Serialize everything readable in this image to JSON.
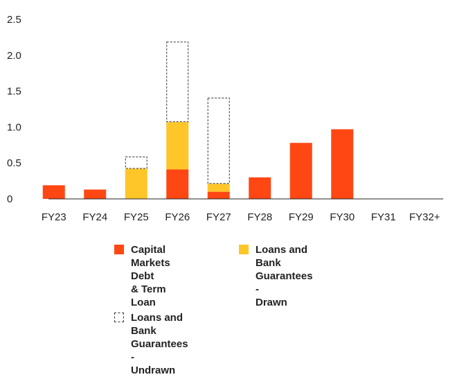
{
  "chart_data": {
    "type": "bar",
    "stacked": true,
    "title": "",
    "xlabel": "",
    "ylabel": "",
    "ylim": [
      0,
      2.5
    ],
    "yticks": [
      "0",
      "0.5",
      "1.0",
      "1.5",
      "2.0",
      "2.5"
    ],
    "categories": [
      "FY23",
      "FY24",
      "FY25",
      "FY26",
      "FY27",
      "FY28",
      "FY29",
      "FY30",
      "FY31",
      "FY32+"
    ],
    "series": [
      {
        "name": "Capital Markets Debt & Term Loan",
        "color": "#ff4713",
        "style": "solid",
        "values": [
          0.19,
          0.13,
          0,
          0.41,
          0.1,
          0.3,
          0.78,
          0.97,
          0,
          0
        ]
      },
      {
        "name": "Loans and Bank Guarantees - Drawn",
        "color": "#ffc629",
        "style": "solid",
        "values": [
          0,
          0,
          0.42,
          0.66,
          0.11,
          0,
          0,
          0,
          0,
          0
        ]
      },
      {
        "name": "Loans and Bank Guarantees - Undrawn",
        "color": "#333333",
        "style": "dashed-outline",
        "values": [
          0,
          0,
          0.17,
          1.12,
          1.2,
          0,
          0,
          0,
          0,
          0
        ]
      }
    ],
    "legend": {
      "placement": "bottom",
      "items": [
        {
          "lines": [
            "Capital",
            "Markets Debt",
            "& Term Loan"
          ]
        },
        {
          "lines": [
            "Loans and",
            "Bank",
            "Guarantees -",
            "Drawn"
          ]
        },
        {
          "lines": [
            "Loans and",
            "Bank",
            "Guarantees -",
            "Undrawn"
          ]
        }
      ]
    },
    "grid": false
  }
}
